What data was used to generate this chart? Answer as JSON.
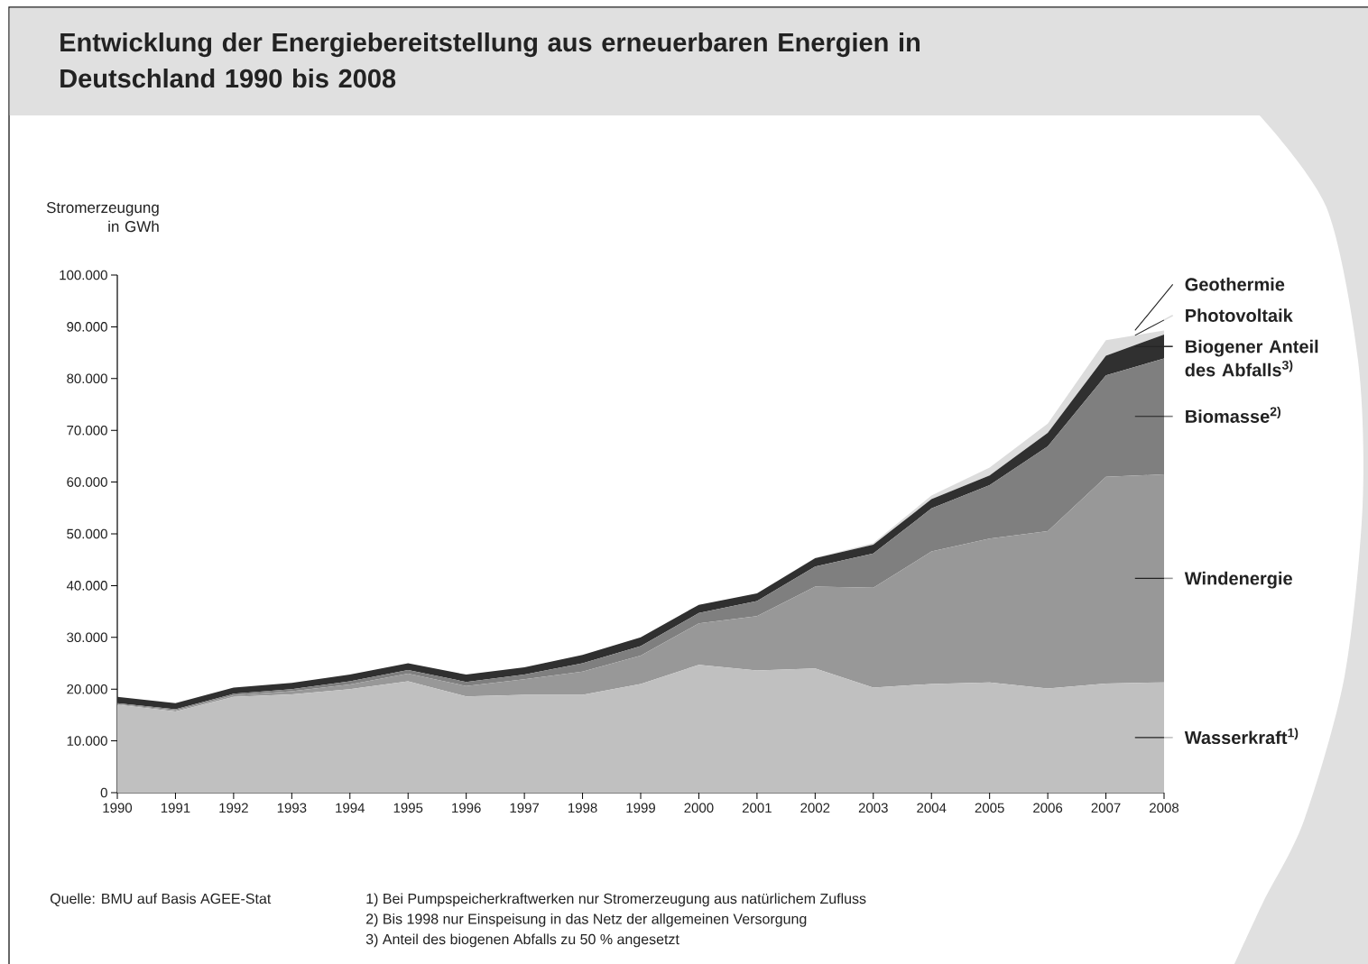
{
  "chart_data": {
    "type": "area",
    "stacked": true,
    "legend": "right",
    "title": "Entwicklung der Energiebereitstellung aus erneuerbaren Energien in Deutschland 1990 bis 2008",
    "ylabel": "Stromerzeugung in GWh",
    "categories": [
      "1990",
      "1991",
      "1992",
      "1993",
      "1994",
      "1995",
      "1996",
      "1997",
      "1998",
      "1999",
      "2000",
      "2001",
      "2002",
      "2003",
      "2004",
      "2005",
      "2006",
      "2007",
      "2008"
    ],
    "series": [
      {
        "name": "Wasserkraft$^{1)}$",
        "color": "#c0c0c0",
        "values": [
          17000,
          15700,
          18500,
          19000,
          20000,
          21500,
          18600,
          18900,
          18900,
          21000,
          24700,
          23600,
          24000,
          20300,
          21000,
          21300,
          20100,
          21100,
          21300
        ]
      },
      {
        "name": "Windenergie",
        "color": "#989898",
        "values": [
          100,
          200,
          300,
          600,
          900,
          1500,
          2000,
          3000,
          4500,
          5500,
          8000,
          10500,
          15800,
          19300,
          25600,
          27800,
          30400,
          39900,
          40200
        ]
      },
      {
        "name": "Biomasse$^{2)}$",
        "color": "#7f7f7f",
        "values": [
          200,
          200,
          300,
          400,
          600,
          700,
          800,
          900,
          1600,
          1800,
          2000,
          2900,
          3900,
          6600,
          8300,
          10300,
          16400,
          19600,
          22400
        ]
      },
      {
        "name": "Biogener Anteil des Abfalls$^{3)}$",
        "color": "#303030",
        "values": [
          1200,
          1200,
          1200,
          1200,
          1300,
          1300,
          1400,
          1400,
          1600,
          1700,
          1600,
          1500,
          1600,
          1700,
          1800,
          1900,
          2600,
          3800,
          4600
        ]
      },
      {
        "name": "Photovoltaik",
        "color": "#dcdcdc",
        "values": [
          0,
          0,
          0,
          0,
          0,
          0,
          0,
          0,
          0,
          0,
          0,
          0,
          100,
          300,
          700,
          1500,
          1800,
          3000,
          800
        ]
      }
    ],
    "ylim": [
      0,
      100000
    ],
    "yticks": [
      0,
      {
        "value": 10000,
        "label": "10.000"
      },
      {
        "value": 20000,
        "label": "20.000"
      },
      {
        "value": 30000,
        "label": "30.000"
      },
      {
        "value": 40000,
        "label": "40.000"
      },
      {
        "value": 50000,
        "label": "50.000"
      },
      {
        "value": 60000,
        "label": "60.000"
      },
      {
        "value": 70000,
        "label": "70.000"
      },
      {
        "value": 80000,
        "label": "80.000"
      },
      {
        "value": 90000,
        "label": "90.000"
      },
      {
        "value": 100000,
        "label": "100.000"
      }
    ],
    "annotations": [
      {
        "text": "Geothermie",
        "x": "2008",
        "y": 89300
      },
      "Quelle: BMU auf Basis AGEE-Stat",
      "1) Bei Pumpspeicherkraftwerken nur Stromerzeugung aus natürlichem Zufluss",
      "2) Bis 1998 nur Einspeisung in das Netz der allgemeinen Versorgung",
      "3) Anteil des biogenen Abfalls zu 50 % angesetzt"
    ]
  }
}
